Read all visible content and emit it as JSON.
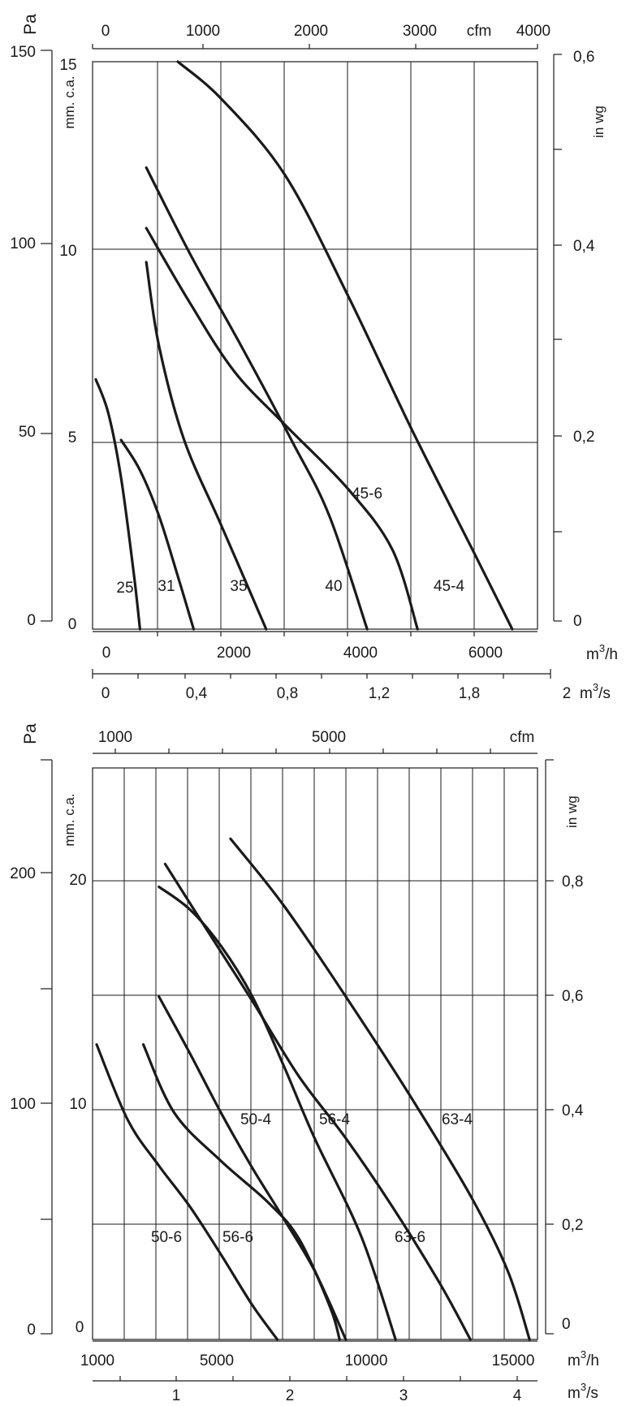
{
  "chart_data": [
    {
      "type": "line",
      "title": "",
      "xlabel": "m3/h",
      "x_range": [
        0,
        7000
      ],
      "y_unit_pa": "Pa",
      "y_unit_mmca": "mm. c.a.",
      "y_unit_inwg": "in wg",
      "pa_ticks": [
        "150",
        "100",
        "50",
        "0"
      ],
      "mmca_ticks": [
        "15",
        "10",
        "5",
        "0"
      ],
      "inwg_ticks": [
        "0,6",
        "0,4",
        "0,2",
        "0"
      ],
      "cfm_unit": "cfm",
      "cfm_ticks": [
        "0",
        "1000",
        "2000",
        "3000",
        "4000"
      ],
      "m3h_ticks": [
        "0",
        "2000",
        "4000",
        "6000"
      ],
      "m3h_unit_base": "m",
      "m3h_unit_sup": "3",
      "m3h_unit_tail": "/h",
      "m3s_ticks": [
        "0",
        "0,4",
        "0,8",
        "1,2",
        "1,8",
        "2"
      ],
      "m3s_unit": "m",
      "m3s_unit_sup": "3",
      "m3s_unit_tail": "/s",
      "grid": true,
      "series": [
        {
          "name": "25",
          "x": [
            0,
            200,
            400,
            600,
            700
          ],
          "y": [
            66,
            57,
            40,
            15,
            0
          ]
        },
        {
          "name": "31",
          "x": [
            400,
            700,
            1000,
            1300,
            1550
          ],
          "y": [
            50,
            42,
            30,
            14,
            0
          ]
        },
        {
          "name": "35",
          "x": [
            800,
            1000,
            1400,
            2000,
            2700
          ],
          "y": [
            97,
            75,
            50,
            27,
            0
          ]
        },
        {
          "name": "40",
          "x": [
            800,
            1500,
            2300,
            3100,
            3700,
            4300
          ],
          "y": [
            122,
            99,
            75,
            50,
            30,
            0
          ]
        },
        {
          "name": "45-6",
          "x": [
            800,
            1500,
            2200,
            3000,
            4000,
            4700,
            5100
          ],
          "y": [
            106,
            86,
            68,
            54,
            37,
            21,
            0
          ]
        },
        {
          "name": "45-4",
          "x": [
            1300,
            2000,
            3000,
            4000,
            5000,
            6000,
            6600
          ],
          "y": [
            150,
            140,
            120,
            88,
            53,
            20,
            0
          ]
        }
      ]
    },
    {
      "type": "line",
      "title": "",
      "xlabel": "m3/h",
      "x_range": [
        1000,
        15000
      ],
      "y_unit_pa": "Pa",
      "y_unit_mmca": "mm. c.a.",
      "y_unit_inwg": "in wg",
      "pa_ticks": [
        "200",
        "100",
        "0"
      ],
      "mmca_ticks": [
        "20",
        "10",
        "0"
      ],
      "inwg_ticks": [
        "0,8",
        "0,6",
        "0,4",
        "0,2",
        "0"
      ],
      "cfm_unit": "cfm",
      "cfm_ticks": [
        "1000",
        "5000"
      ],
      "m3h_ticks": [
        "1000",
        "5000",
        "10000",
        "15000"
      ],
      "m3h_unit_base": "m",
      "m3h_unit_sup": "3",
      "m3h_unit_tail": "/h",
      "m3s_ticks": [
        "1",
        "2",
        "3",
        "4"
      ],
      "m3s_unit": "m",
      "m3s_unit_sup": "3",
      "m3s_unit_tail": "/s",
      "grid": true,
      "series": [
        {
          "name": "50-6",
          "x": [
            1000,
            2000,
            3000,
            4000,
            5000,
            6000,
            6800
          ],
          "y": [
            129,
            96,
            76,
            58,
            37,
            15,
            0
          ]
        },
        {
          "name": "56-6",
          "x": [
            2500,
            3500,
            5000,
            6500,
            7500,
            8500,
            8800
          ],
          "y": [
            129,
            99,
            78,
            60,
            44,
            14,
            0
          ]
        },
        {
          "name": "50-4",
          "x": [
            3000,
            4000,
            5000,
            6000,
            7000,
            8000,
            9000
          ],
          "y": [
            150,
            125,
            99,
            75,
            53,
            30,
            0
          ]
        },
        {
          "name": "56-4",
          "x": [
            3000,
            4000,
            5000,
            6000,
            7000,
            8000,
            9500,
            10600
          ],
          "y": [
            198,
            188,
            172,
            150,
            120,
            88,
            45,
            0
          ]
        },
        {
          "name": "63-6",
          "x": [
            3200,
            4500,
            6000,
            7500,
            9000,
            10500,
            12000,
            13000
          ],
          "y": [
            208,
            180,
            148,
            115,
            88,
            58,
            25,
            0
          ]
        },
        {
          "name": "63-4",
          "x": [
            5300,
            7000,
            9000,
            11000,
            13000,
            14200,
            14900
          ],
          "y": [
            219,
            190,
            150,
            108,
            63,
            30,
            0
          ]
        }
      ]
    }
  ]
}
